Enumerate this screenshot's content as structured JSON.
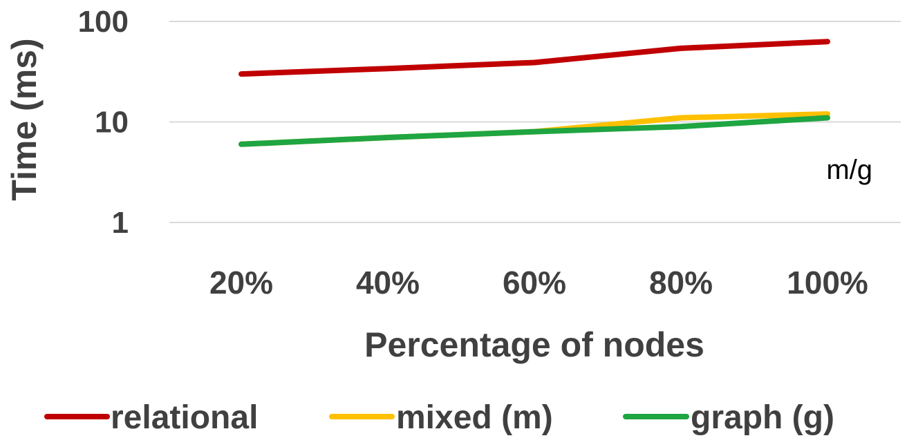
{
  "chart_data": {
    "type": "line",
    "y_scale": "log",
    "ylim": [
      1,
      100
    ],
    "yticks": [
      1,
      10,
      100
    ],
    "ytick_labels": [
      "1",
      "10",
      "100"
    ],
    "grid": true,
    "legend_position": "bottom",
    "categories": [
      "20%",
      "40%",
      "60%",
      "80%",
      "100%"
    ],
    "xlabel": "Percentage of nodes",
    "ylabel": "Time (ms)",
    "annotation": "m/g",
    "series": [
      {
        "name": "relational",
        "color": "#c00000",
        "values": [
          30,
          34,
          39,
          54,
          63
        ]
      },
      {
        "name": "mixed (m)",
        "color": "#ffc000",
        "values": [
          6,
          7,
          8,
          11,
          12
        ]
      },
      {
        "name": "graph (g)",
        "color": "#1fa541",
        "values": [
          6,
          7,
          8,
          9,
          11
        ]
      }
    ]
  }
}
